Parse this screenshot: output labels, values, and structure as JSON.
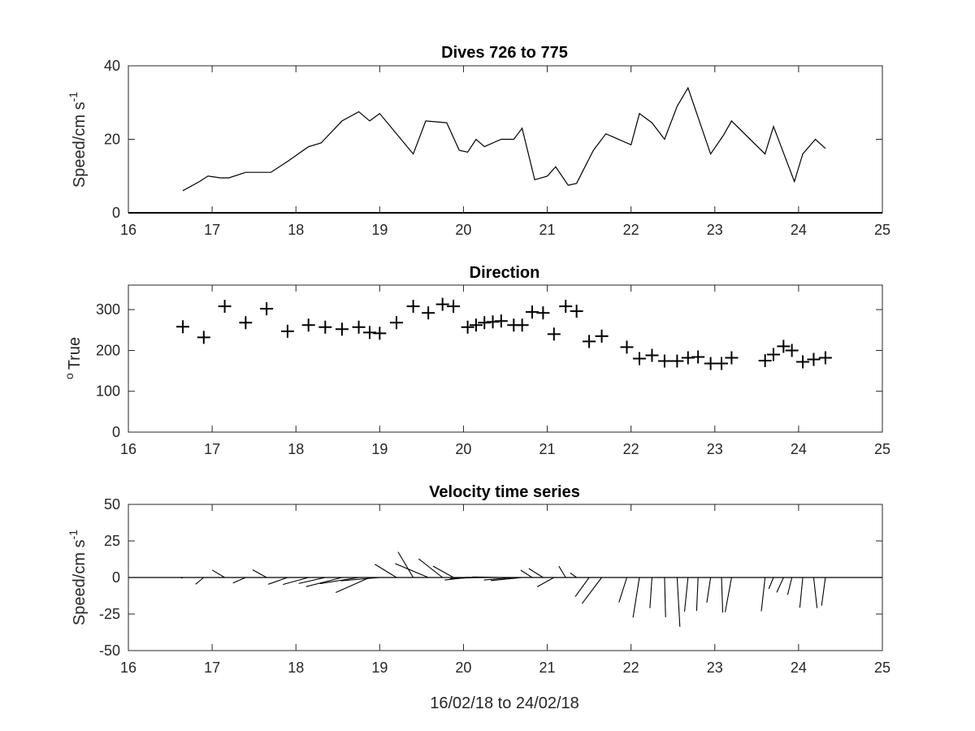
{
  "chart_data": [
    {
      "type": "line",
      "title": "Dives 726 to 775",
      "ylabel": "Speed/cm s",
      "ylabel_superscript": "-1",
      "xlabel": "",
      "xlim": [
        16,
        25
      ],
      "ylim": [
        0,
        40
      ],
      "xticks": [
        "16",
        "17",
        "18",
        "19",
        "20",
        "21",
        "22",
        "23",
        "24",
        "25"
      ],
      "yticks": [
        "0",
        "20",
        "40"
      ],
      "grid": false,
      "series": [
        {
          "x": [
            16.65,
            16.85,
            16.95,
            17.1,
            17.2,
            17.4,
            17.5,
            17.7,
            17.9,
            18.15,
            18.3,
            18.55,
            18.75,
            18.88,
            19.0,
            19.4,
            19.55,
            19.8,
            19.95,
            20.05,
            20.15,
            20.25,
            20.45,
            20.6,
            20.7,
            20.85,
            21.0,
            21.1,
            21.25,
            21.35,
            21.55,
            21.7,
            22.0,
            22.1,
            22.25,
            22.4,
            22.55,
            22.68,
            22.95,
            23.1,
            23.2,
            23.6,
            23.7,
            23.95,
            24.05,
            24.2,
            24.32
          ],
          "y": [
            6,
            8.5,
            10,
            9.5,
            9.5,
            11,
            11,
            11,
            14,
            18,
            19,
            25,
            27.5,
            25,
            27,
            16,
            25,
            24.5,
            17,
            16.5,
            20,
            18,
            20,
            20,
            23,
            9,
            10,
            12.5,
            7.5,
            8,
            17,
            21.5,
            18.5,
            27,
            24.5,
            20,
            29,
            34,
            16,
            21,
            25,
            16,
            23.5,
            8.5,
            16,
            20,
            17.5
          ]
        }
      ]
    },
    {
      "type": "scatter",
      "title": "Direction",
      "ylabel": "True",
      "ylabel_prefix": "o",
      "xlabel": "",
      "xlim": [
        16,
        25
      ],
      "ylim": [
        0,
        360
      ],
      "xticks": [
        "16",
        "17",
        "18",
        "19",
        "20",
        "21",
        "22",
        "23",
        "24",
        "25"
      ],
      "yticks": [
        "0",
        "100",
        "200",
        "300"
      ],
      "marker": "+",
      "grid": false,
      "series": [
        {
          "x": [
            16.65,
            16.9,
            17.15,
            17.4,
            17.65,
            17.9,
            18.15,
            18.35,
            18.55,
            18.75,
            18.88,
            19.0,
            19.2,
            19.4,
            19.58,
            19.75,
            19.88,
            20.05,
            20.15,
            20.25,
            20.35,
            20.45,
            20.6,
            20.7,
            20.82,
            20.95,
            21.08,
            21.22,
            21.35,
            21.5,
            21.65,
            21.95,
            22.1,
            22.25,
            22.4,
            22.55,
            22.68,
            22.8,
            22.95,
            23.08,
            23.2,
            23.6,
            23.7,
            23.82,
            23.92,
            24.05,
            24.18,
            24.32
          ],
          "y": [
            258,
            232,
            308,
            268,
            302,
            247,
            262,
            257,
            252,
            257,
            244,
            242,
            268,
            308,
            292,
            313,
            308,
            257,
            262,
            268,
            270,
            272,
            262,
            262,
            294,
            292,
            240,
            308,
            296,
            222,
            235,
            208,
            180,
            188,
            174,
            174,
            182,
            184,
            168,
            168,
            182,
            175,
            190,
            210,
            200,
            172,
            178,
            182
          ]
        }
      ]
    },
    {
      "type": "quiver",
      "title": "Velocity time series",
      "ylabel": "Speed/cm s",
      "ylabel_superscript": "-1",
      "xlabel": "16/02/18 to 24/02/18",
      "xlim": [
        16,
        25
      ],
      "ylim": [
        -50,
        50
      ],
      "xticks": [
        "16",
        "17",
        "18",
        "19",
        "20",
        "21",
        "22",
        "23",
        "24",
        "25"
      ],
      "yticks": [
        "-50",
        "-25",
        "0",
        "25",
        "50"
      ],
      "grid": false,
      "note_units": "u and v in cm/s; sticks drawn from (t, 0)",
      "series": [
        {
          "t": [
            16.65,
            16.9,
            17.15,
            17.4,
            17.65,
            17.9,
            18.15,
            18.35,
            18.55,
            18.75,
            18.88,
            19.0,
            19.2,
            19.4,
            19.58,
            19.75,
            19.88,
            20.05,
            20.15,
            20.25,
            20.35,
            20.45,
            20.6,
            20.7,
            20.82,
            20.95,
            21.08,
            21.22,
            21.35,
            21.5,
            21.65,
            21.95,
            22.1,
            22.25,
            22.4,
            22.55,
            22.68,
            22.8,
            22.95,
            23.08,
            23.2,
            23.6,
            23.7,
            23.82,
            23.92,
            24.05,
            24.18,
            24.32
          ],
          "u": [
            -1.2,
            -5.6,
            -8.6,
            -8.7,
            -9.6,
            -13.2,
            -17.5,
            -18.2,
            -24.6,
            -26.6,
            -23.2,
            -26.6,
            -14.8,
            -10.4,
            -22.7,
            -16.3,
            -14.0,
            -15.7,
            -17.9,
            -20.6,
            -18.9,
            -19.7,
            -20.4,
            -21.4,
            -7.9,
            -9.7,
            -11.5,
            -4.7,
            -4.3,
            -9.5,
            -13.5,
            -5.4,
            -4.4,
            -1.4,
            0.7,
            1.9,
            -2.4,
            -1.0,
            -2.6,
            0.8,
            -4.4,
            -2.6,
            -3.2,
            -4.6,
            -2.9,
            -2.0,
            2.3,
            -2.6
          ],
          "v": [
            -0.5,
            -4.6,
            5.1,
            -3.8,
            5.3,
            -4.6,
            -4.8,
            -4.1,
            -6.3,
            -4.2,
            -10.3,
            -2.3,
            9.1,
            17.5,
            9.5,
            12.7,
            7.8,
            -1.7,
            -0.8,
            -0.2,
            0.1,
            0.4,
            -1.7,
            -2.1,
            5.0,
            6.1,
            -6.4,
            7.8,
            3.1,
            -13.1,
            -17.9,
            -17.0,
            -27.4,
            -20.9,
            -27.1,
            -33.7,
            -23.3,
            -22.9,
            -17.2,
            -24.0,
            -23.7,
            -23.1,
            -7.8,
            -10.2,
            -11.8,
            -20.6,
            -20.9,
            -19.3
          ]
        }
      ]
    }
  ]
}
